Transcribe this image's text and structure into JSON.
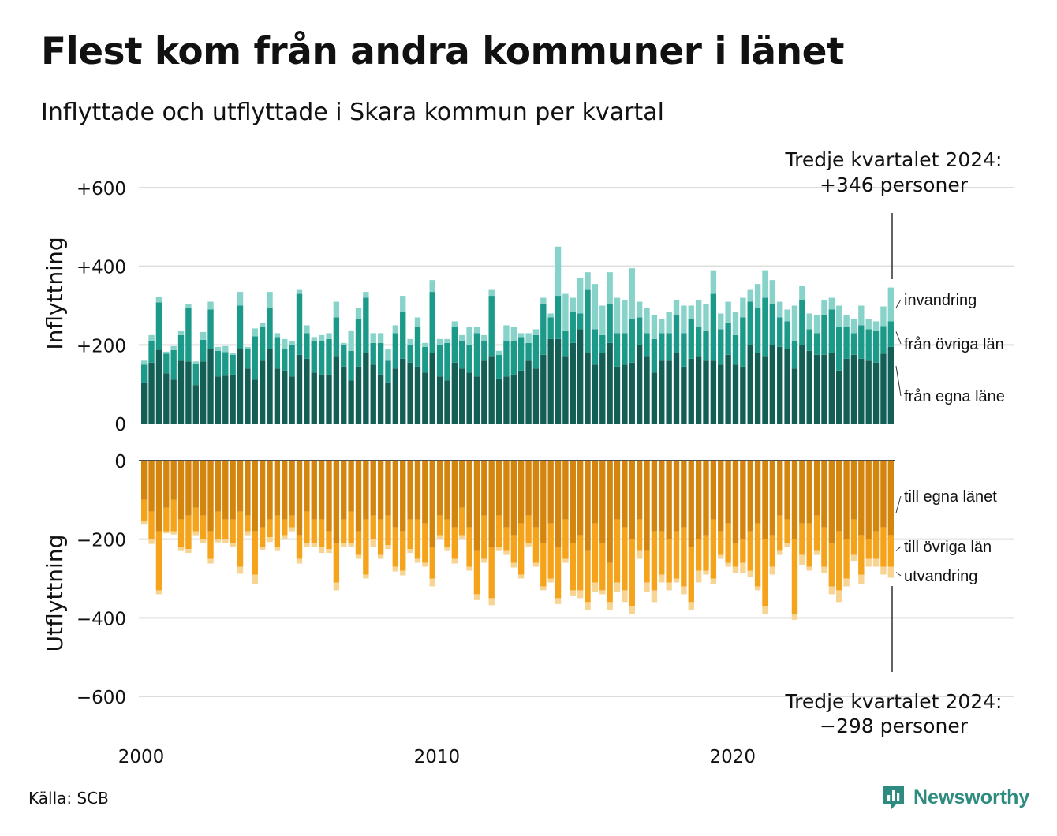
{
  "title": "Flest kom från andra kommuner i länet",
  "subtitle": "Inflyttade och utflyttade i Skara kommun per kvartal",
  "source": "Källa: SCB",
  "brand": "Newsworthy",
  "colors": {
    "in_own": "#135f56",
    "in_other": "#1b9a89",
    "in_imm": "#88d3c9",
    "out_own": "#d4850d",
    "out_other": "#f5a31b",
    "out_emi": "#f8d493",
    "grid": "#dcdcdc",
    "brand": "#2e8b80"
  },
  "chart_data": {
    "type": "bar",
    "stacked": true,
    "x_tick_labels": [
      "2000",
      "2010",
      "2020"
    ],
    "grid": true,
    "panels": [
      {
        "ylabel": "Inflyttning",
        "ylim": [
          0,
          600
        ],
        "ytick_labels": [
          "0",
          "+200",
          "+400",
          "+600"
        ],
        "annotation": "Tredje kvartalet 2024:\n+346 personer",
        "annotation_lines": [
          "Tredje kvartalet 2024:",
          "+346 personer"
        ],
        "series_labels": [
          "invandring",
          "från övriga län",
          "från egna läne"
        ],
        "series": [
          {
            "name": "från egna läne",
            "values": [
              105,
              155,
              188,
              128,
              112,
              160,
              158,
              98,
              158,
              190,
              120,
              122,
              125,
              190,
              140,
              112,
              160,
              190,
              140,
              135,
              120,
              175,
              165,
              130,
              125,
              125,
              170,
              145,
              110,
              145,
              180,
              150,
              125,
              105,
              140,
              165,
              155,
              145,
              130,
              180,
              120,
              110,
              155,
              140,
              130,
              120,
              160,
              170,
              115,
              120,
              125,
              135,
              160,
              140,
              175,
              215,
              215,
              170,
              205,
              240,
              180,
              150,
              180,
              205,
              145,
              150,
              155,
              200,
              170,
              130,
              160,
              160,
              180,
              145,
              165,
              170,
              160,
              160,
              150,
              175,
              150,
              145,
              200,
              180,
              170,
              200,
              195,
              190,
              140,
              200,
              185,
              175,
              175,
              180,
              135,
              165,
              175,
              165,
              160,
              155,
              178,
              195
            ]
          },
          {
            "name": "från övriga län",
            "values": [
              45,
              55,
              120,
              50,
              75,
              65,
              135,
              55,
              55,
              100,
              65,
              60,
              50,
              110,
              50,
              110,
              85,
              105,
              80,
              55,
              80,
              155,
              65,
              80,
              85,
              90,
              100,
              55,
              75,
              120,
              140,
              55,
              80,
              55,
              90,
              120,
              45,
              100,
              65,
              155,
              80,
              95,
              90,
              70,
              70,
              110,
              50,
              155,
              60,
              90,
              85,
              85,
              45,
              85,
              130,
              55,
              110,
              65,
              80,
              40,
              160,
              90,
              45,
              100,
              85,
              80,
              110,
              70,
              60,
              85,
              70,
              70,
              95,
              85,
              100,
              75,
              75,
              170,
              90,
              80,
              75,
              125,
              110,
              115,
              150,
              105,
              75,
              70,
              70,
              115,
              55,
              55,
              100,
              110,
              110,
              80,
              55,
              85,
              80,
              80,
              70,
              65
            ]
          },
          {
            "name": "invandring",
            "values": [
              10,
              15,
              15,
              5,
              10,
              10,
              10,
              5,
              20,
              20,
              10,
              15,
              5,
              35,
              5,
              20,
              10,
              40,
              10,
              25,
              10,
              10,
              20,
              10,
              15,
              15,
              40,
              5,
              50,
              30,
              15,
              25,
              25,
              30,
              20,
              40,
              15,
              25,
              10,
              30,
              15,
              10,
              15,
              15,
              45,
              15,
              15,
              15,
              10,
              40,
              35,
              10,
              25,
              15,
              15,
              10,
              125,
              95,
              35,
              90,
              45,
              115,
              75,
              80,
              90,
              85,
              130,
              40,
              65,
              60,
              35,
              55,
              40,
              70,
              35,
              70,
              70,
              60,
              40,
              55,
              60,
              50,
              30,
              60,
              70,
              60,
              40,
              30,
              90,
              35,
              40,
              45,
              40,
              30,
              55,
              30,
              35,
              50,
              25,
              25,
              50,
              86
            ]
          }
        ]
      },
      {
        "ylabel": "Utflyttning",
        "ylim": [
          -600,
          0
        ],
        "ytick_labels": [
          "0",
          "−200",
          "−400",
          "−600"
        ],
        "annotation": "Tredje kvartalet 2024:\n−298 personer",
        "annotation_lines": [
          "Tredje kvartalet 2024:",
          "−298 personer"
        ],
        "series_labels": [
          "till egna länet",
          "till övriga län",
          "utvandring"
        ],
        "series": [
          {
            "name": "till egna länet",
            "values": [
              -100,
              -130,
              -180,
              -120,
              -100,
              -150,
              -140,
              -120,
              -140,
              -180,
              -130,
              -150,
              -150,
              -130,
              -140,
              -180,
              -170,
              -150,
              -140,
              -150,
              -140,
              -190,
              -130,
              -150,
              -150,
              -180,
              -210,
              -150,
              -130,
              -180,
              -150,
              -140,
              -150,
              -140,
              -170,
              -180,
              -150,
              -150,
              -160,
              -220,
              -140,
              -150,
              -170,
              -120,
              -170,
              -230,
              -140,
              -220,
              -140,
              -170,
              -190,
              -160,
              -140,
              -170,
              -210,
              -160,
              -220,
              -150,
              -210,
              -190,
              -230,
              -160,
              -210,
              -260,
              -150,
              -170,
              -200,
              -150,
              -230,
              -180,
              -180,
              -200,
              -180,
              -170,
              -220,
              -200,
              -190,
              -150,
              -180,
              -160,
              -210,
              -200,
              -180,
              -160,
              -200,
              -190,
              -140,
              -150,
              -200,
              -160,
              -160,
              -140,
              -170,
              -210,
              -180,
              -200,
              -150,
              -190,
              -200,
              -180,
              -170,
              -190
            ]
          },
          {
            "name": "till övriga län",
            "values": [
              -55,
              -70,
              -150,
              -60,
              -80,
              -70,
              -85,
              -60,
              -60,
              -70,
              -70,
              -50,
              -60,
              -140,
              -40,
              -110,
              -50,
              -45,
              -80,
              -40,
              -30,
              -60,
              -80,
              -60,
              -70,
              -45,
              -100,
              -60,
              -80,
              -60,
              -140,
              -60,
              -90,
              -75,
              -100,
              -100,
              -75,
              -100,
              -100,
              -80,
              -50,
              -70,
              -80,
              -70,
              -100,
              -110,
              -110,
              -130,
              -80,
              -60,
              -70,
              -130,
              -70,
              -90,
              -110,
              -140,
              -130,
              -100,
              -120,
              -140,
              -130,
              -150,
              -120,
              -100,
              -160,
              -160,
              -170,
              -80,
              -80,
              -150,
              -110,
              -110,
              -120,
              -150,
              -140,
              -80,
              -90,
              -150,
              -60,
              -100,
              -60,
              -60,
              -100,
              -160,
              -170,
              -80,
              -90,
              -60,
              -190,
              -80,
              -110,
              -90,
              -100,
              -110,
              -150,
              -100,
              -90,
              -100,
              -50,
              -70,
              -100,
              -80
            ]
          },
          {
            "name": "utvandring",
            "values": [
              -8,
              -12,
              -10,
              -5,
              -8,
              -10,
              -10,
              -10,
              -10,
              -12,
              -8,
              -10,
              -10,
              -18,
              -10,
              -25,
              -8,
              -12,
              -10,
              -10,
              -10,
              -12,
              -10,
              -10,
              -15,
              -10,
              -20,
              -10,
              -10,
              -10,
              -10,
              -20,
              -10,
              -10,
              -12,
              -12,
              -10,
              -10,
              -10,
              -20,
              -10,
              -10,
              -12,
              -10,
              -10,
              -15,
              -10,
              -18,
              -10,
              -10,
              -12,
              -10,
              -10,
              -10,
              -10,
              -10,
              -15,
              -10,
              -15,
              -20,
              -20,
              -25,
              -10,
              -20,
              -25,
              -30,
              -20,
              -20,
              -25,
              -30,
              -20,
              -20,
              -10,
              -20,
              -20,
              -30,
              -10,
              -15,
              -10,
              -10,
              -15,
              -25,
              -15,
              -10,
              -20,
              -20,
              -10,
              -10,
              -15,
              -25,
              -10,
              -10,
              -15,
              -20,
              -30,
              -20,
              -15,
              -25,
              -20,
              -20,
              -20,
              -28
            ]
          }
        ]
      }
    ]
  }
}
